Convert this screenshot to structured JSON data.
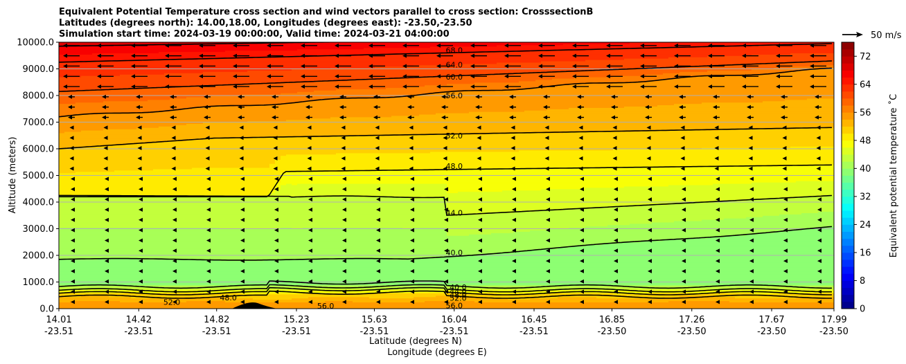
{
  "chart_data": {
    "type": "heatmap",
    "title_lines": [
      "Equivalent Potential Temperature cross section and wind vectors parallel to cross section: CrosssectionB",
      "Latitudes (degrees north): 14.00,18.00, Longitudes (degrees east): -23.50,-23.50",
      "Simulation start time: 2024-03-19 00:00:00, Valid time: 2024-03-21 04:00:00"
    ],
    "xlabel": "Latitude (degrees N)",
    "xlabel2": "Longitude (degrees E)",
    "ylabel": "Altitude (meters)",
    "xlim": [
      14.01,
      17.99
    ],
    "ylim": [
      0,
      10000
    ],
    "x_ticks": [
      {
        "lat": "14.01",
        "lon": "-23.51",
        "v": 14.01
      },
      {
        "lat": "14.42",
        "lon": "-23.51",
        "v": 14.42
      },
      {
        "lat": "14.82",
        "lon": "-23.51",
        "v": 14.82
      },
      {
        "lat": "15.23",
        "lon": "-23.51",
        "v": 15.23
      },
      {
        "lat": "15.63",
        "lon": "-23.51",
        "v": 15.63
      },
      {
        "lat": "16.04",
        "lon": "-23.51",
        "v": 16.04
      },
      {
        "lat": "16.45",
        "lon": "-23.51",
        "v": 16.45
      },
      {
        "lat": "16.85",
        "lon": "-23.50",
        "v": 16.85
      },
      {
        "lat": "17.26",
        "lon": "-23.50",
        "v": 17.26
      },
      {
        "lat": "17.67",
        "lon": "-23.50",
        "v": 17.67
      },
      {
        "lat": "17.99",
        "lon": "-23.50",
        "v": 17.99
      }
    ],
    "y_ticks": [
      {
        "v": 0,
        "label": "0.0"
      },
      {
        "v": 1000,
        "label": "1000.0"
      },
      {
        "v": 2000,
        "label": "2000.0"
      },
      {
        "v": 3000,
        "label": "3000.0"
      },
      {
        "v": 4000,
        "label": "4000.0"
      },
      {
        "v": 5000,
        "label": "5000.0"
      },
      {
        "v": 6000,
        "label": "6000.0"
      },
      {
        "v": 7000,
        "label": "7000.0"
      },
      {
        "v": 8000,
        "label": "8000.0"
      },
      {
        "v": 9000,
        "label": "9000.0"
      },
      {
        "v": 10000,
        "label": "10000.0"
      }
    ],
    "grid": "horizontal",
    "colorbar": {
      "label": "Equivalent potential temperature $^\\circ$C",
      "label_text": "Equivalent potential temperature ˚C",
      "min": 0,
      "max": 76,
      "step": 2,
      "ticks": [
        {
          "v": 0,
          "label": "0"
        },
        {
          "v": 8,
          "label": "8"
        },
        {
          "v": 16,
          "label": "16"
        },
        {
          "v": 24,
          "label": "24"
        },
        {
          "v": 32,
          "label": "32"
        },
        {
          "v": 40,
          "label": "40"
        },
        {
          "v": 48,
          "label": "48"
        },
        {
          "v": 56,
          "label": "56"
        },
        {
          "v": 64,
          "label": "64"
        },
        {
          "v": 72,
          "label": "72"
        }
      ],
      "colormap": "jet"
    },
    "quiver_key": {
      "label": "50 m/s",
      "magnitude": 50
    },
    "contour_labels": [
      {
        "label": "68.0",
        "x": 16.04,
        "y": 9700
      },
      {
        "label": "64.0",
        "x": 16.04,
        "y": 9150
      },
      {
        "label": "60.0",
        "x": 16.04,
        "y": 8700
      },
      {
        "label": "56.0",
        "x": 16.04,
        "y": 8000
      },
      {
        "label": "52.0",
        "x": 16.04,
        "y": 6500
      },
      {
        "label": "48.0",
        "x": 16.04,
        "y": 5350
      },
      {
        "label": "44.0",
        "x": 16.04,
        "y": 3600
      },
      {
        "label": "40.0",
        "x": 16.04,
        "y": 2100
      },
      {
        "label": "40.0",
        "x": 16.06,
        "y": 800
      },
      {
        "label": "44.0",
        "x": 16.06,
        "y": 650
      },
      {
        "label": "48.0",
        "x": 16.06,
        "y": 520
      },
      {
        "label": "52.0",
        "x": 16.06,
        "y": 400
      },
      {
        "label": "52.0",
        "x": 14.59,
        "y": 250
      },
      {
        "label": "48.0",
        "x": 14.88,
        "y": 420
      },
      {
        "label": "56.0",
        "x": 15.38,
        "y": 100
      },
      {
        "label": "56.0",
        "x": 16.04,
        "y": 120
      }
    ],
    "contour_levels": [
      40,
      44,
      48,
      52,
      56,
      60,
      64,
      68
    ]
  }
}
